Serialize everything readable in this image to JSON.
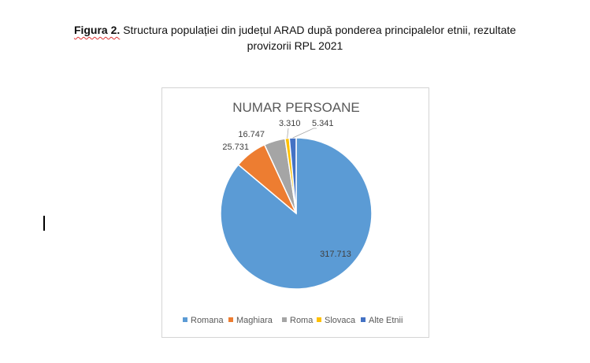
{
  "figure": {
    "label": "Figura 2.",
    "caption_line1": "Structura populației din județul ARAD după ponderea principalelor etnii, rezultate",
    "caption_line2": "provizorii  RPL 2021"
  },
  "chart_data": {
    "type": "pie",
    "title": "NUMAR PERSOANE",
    "legend_position": "bottom",
    "slices": [
      {
        "label": "Romana",
        "value": 317713,
        "display": "317.713",
        "color": "#5b9bd5"
      },
      {
        "label": "Maghiara",
        "value": 25731,
        "display": "25.731",
        "color": "#ed7d31"
      },
      {
        "label": "Roma",
        "value": 16747,
        "display": "16.747",
        "color": "#a5a5a5"
      },
      {
        "label": "Slovaca",
        "value": 3310,
        "display": "3.310",
        "color": "#ffc000"
      },
      {
        "label": "Alte Etnii",
        "value": 5341,
        "display": "5.341",
        "color": "#4472c4"
      }
    ]
  }
}
